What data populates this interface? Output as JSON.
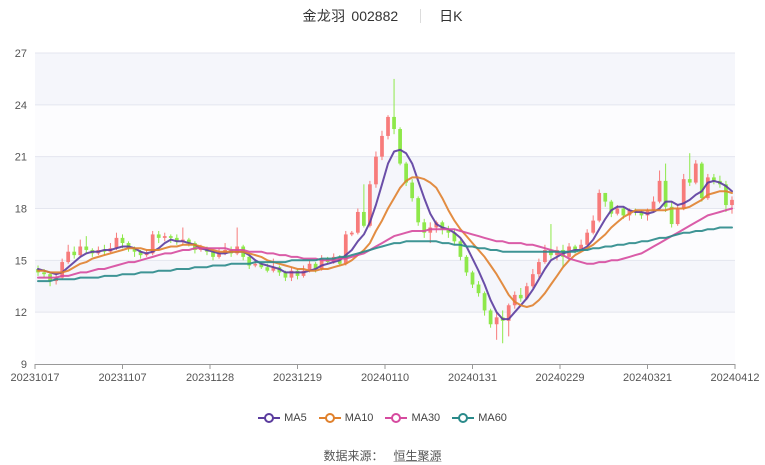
{
  "header": {
    "stock_name": "金龙羽",
    "stock_code": "002882",
    "period": "日K"
  },
  "legend": [
    {
      "label": "MA5",
      "color": "#5b3c9e"
    },
    {
      "label": "MA10",
      "color": "#e0812d"
    },
    {
      "label": "MA30",
      "color": "#d64a9f"
    },
    {
      "label": "MA60",
      "color": "#2a8a8a"
    }
  ],
  "source": {
    "label": "数据来源：",
    "value": "恒生聚源"
  },
  "colors": {
    "up": "#f77b7b",
    "down": "#8ee84a",
    "band_shaded": "#f5f6fb",
    "band_plain": "#fcfcfe",
    "grid": "#e4e6ef",
    "axis": "#999999"
  },
  "chart_data": {
    "type": "candlestick",
    "title": "金龙羽 002882 日K",
    "xlabel": "",
    "ylabel": "",
    "ylim": [
      9,
      27
    ],
    "yticks": [
      9,
      12,
      15,
      18,
      21,
      24,
      27
    ],
    "xticks": [
      "20231017",
      "20231107",
      "20231128",
      "20231219",
      "20240110",
      "20240131",
      "20240229",
      "20240321",
      "20240412"
    ],
    "grid": true,
    "legend_position": "bottom",
    "candles": [
      [
        14.5,
        14.3,
        14.7,
        14.1
      ],
      [
        14.3,
        14.2,
        14.5,
        14.0
      ],
      [
        14.2,
        13.8,
        14.3,
        13.5
      ],
      [
        13.8,
        14.0,
        14.2,
        13.6
      ],
      [
        14.0,
        14.9,
        15.1,
        13.9
      ],
      [
        14.9,
        15.5,
        15.9,
        14.8
      ],
      [
        15.5,
        15.3,
        15.8,
        15.1
      ],
      [
        15.3,
        15.8,
        16.2,
        15.2
      ],
      [
        15.8,
        15.6,
        16.4,
        15.4
      ],
      [
        15.6,
        15.4,
        15.7,
        15.2
      ],
      [
        15.4,
        15.6,
        15.8,
        15.3
      ],
      [
        15.6,
        15.5,
        15.9,
        15.3
      ],
      [
        15.5,
        15.7,
        16.0,
        15.4
      ],
      [
        15.7,
        16.3,
        16.6,
        15.6
      ],
      [
        16.3,
        16.0,
        16.5,
        15.7
      ],
      [
        16.0,
        15.7,
        16.1,
        15.5
      ],
      [
        15.7,
        15.5,
        15.8,
        15.2
      ],
      [
        15.5,
        15.3,
        15.6,
        15.1
      ],
      [
        15.3,
        15.4,
        15.6,
        15.2
      ],
      [
        15.4,
        16.5,
        16.7,
        15.3
      ],
      [
        16.5,
        16.3,
        16.7,
        16.0
      ],
      [
        16.3,
        16.4,
        16.6,
        16.1
      ],
      [
        16.4,
        16.3,
        16.5,
        16.0
      ],
      [
        16.3,
        16.1,
        16.5,
        15.9
      ],
      [
        16.1,
        16.2,
        16.9,
        15.9
      ],
      [
        16.2,
        16.0,
        16.3,
        15.8
      ],
      [
        16.0,
        15.6,
        16.1,
        15.4
      ],
      [
        15.6,
        15.7,
        15.9,
        15.5
      ],
      [
        15.7,
        15.5,
        15.8,
        15.3
      ],
      [
        15.5,
        15.2,
        15.6,
        15.0
      ],
      [
        15.2,
        15.4,
        15.7,
        15.1
      ],
      [
        15.4,
        15.6,
        16.0,
        15.3
      ],
      [
        15.6,
        15.4,
        15.8,
        15.2
      ],
      [
        15.4,
        15.8,
        16.9,
        15.3
      ],
      [
        15.8,
        15.2,
        15.9,
        15.0
      ],
      [
        15.2,
        14.7,
        15.3,
        14.5
      ],
      [
        14.7,
        14.8,
        15.0,
        14.6
      ],
      [
        14.8,
        14.6,
        14.9,
        14.5
      ],
      [
        14.6,
        14.4,
        14.8,
        14.3
      ],
      [
        14.4,
        14.6,
        15.1,
        14.3
      ],
      [
        14.6,
        14.3,
        14.7,
        14.1
      ],
      [
        14.3,
        14.0,
        14.4,
        13.8
      ],
      [
        14.0,
        14.4,
        14.6,
        13.8
      ],
      [
        14.4,
        14.1,
        14.5,
        13.9
      ],
      [
        14.1,
        14.4,
        14.7,
        14.0
      ],
      [
        14.4,
        14.8,
        15.0,
        14.3
      ],
      [
        14.8,
        14.5,
        14.9,
        14.3
      ],
      [
        14.5,
        15.1,
        15.3,
        14.4
      ],
      [
        15.1,
        14.9,
        15.2,
        14.8
      ],
      [
        14.9,
        15.2,
        15.4,
        14.8
      ],
      [
        15.2,
        14.8,
        15.3,
        14.7
      ],
      [
        14.8,
        16.5,
        16.7,
        14.7
      ],
      [
        16.5,
        16.6,
        16.7,
        16.4
      ],
      [
        16.6,
        17.8,
        18.0,
        16.5
      ],
      [
        17.8,
        17.0,
        19.4,
        16.9
      ],
      [
        17.0,
        19.4,
        19.6,
        16.9
      ],
      [
        19.4,
        21.0,
        21.3,
        19.2
      ],
      [
        21.0,
        22.2,
        22.5,
        20.8
      ],
      [
        22.2,
        23.3,
        23.4,
        22.0
      ],
      [
        23.3,
        22.6,
        25.5,
        22.3
      ],
      [
        22.6,
        20.6,
        22.7,
        20.5
      ],
      [
        20.6,
        19.5,
        20.7,
        19.3
      ],
      [
        19.5,
        18.6,
        19.7,
        18.4
      ],
      [
        18.6,
        17.2,
        18.7,
        17.0
      ],
      [
        17.2,
        16.6,
        17.4,
        16.3
      ],
      [
        16.6,
        16.9,
        17.2,
        16.0
      ],
      [
        16.9,
        17.2,
        17.3,
        16.6
      ],
      [
        17.2,
        16.8,
        17.3,
        16.5
      ],
      [
        16.8,
        16.6,
        17.0,
        16.3
      ],
      [
        16.6,
        16.1,
        16.8,
        15.9
      ],
      [
        16.1,
        15.2,
        16.2,
        15.0
      ],
      [
        15.2,
        14.3,
        15.3,
        14.1
      ],
      [
        14.3,
        13.6,
        14.4,
        13.4
      ],
      [
        13.6,
        13.1,
        13.8,
        12.9
      ],
      [
        13.1,
        12.1,
        13.2,
        11.8
      ],
      [
        12.1,
        11.3,
        12.2,
        11.1
      ],
      [
        11.3,
        11.7,
        12.0,
        10.4
      ],
      [
        11.7,
        11.5,
        12.1,
        10.2
      ],
      [
        11.5,
        12.4,
        12.5,
        10.6
      ],
      [
        12.4,
        13.0,
        13.2,
        12.2
      ],
      [
        13.0,
        12.8,
        13.4,
        12.6
      ],
      [
        12.8,
        13.5,
        13.7,
        12.7
      ],
      [
        13.5,
        14.2,
        14.5,
        13.4
      ],
      [
        14.2,
        14.9,
        15.1,
        14.0
      ],
      [
        14.9,
        15.6,
        15.9,
        14.8
      ],
      [
        15.6,
        15.3,
        17.1,
        15.1
      ],
      [
        15.3,
        15.6,
        15.8,
        15.0
      ],
      [
        15.6,
        15.2,
        15.9,
        14.6
      ],
      [
        15.2,
        15.8,
        16.0,
        15.0
      ],
      [
        15.8,
        15.6,
        15.9,
        15.4
      ],
      [
        15.6,
        15.9,
        16.2,
        15.5
      ],
      [
        15.9,
        16.6,
        16.8,
        15.8
      ],
      [
        16.6,
        17.3,
        17.6,
        16.5
      ],
      [
        17.3,
        18.9,
        19.1,
        17.2
      ],
      [
        18.9,
        18.4,
        18.9,
        18.1
      ],
      [
        18.4,
        17.7,
        18.5,
        17.5
      ],
      [
        17.7,
        18.0,
        18.2,
        17.6
      ],
      [
        18.0,
        17.6,
        18.1,
        17.4
      ],
      [
        17.6,
        17.9,
        18.0,
        17.3
      ],
      [
        17.9,
        17.8,
        18.0,
        17.6
      ],
      [
        17.8,
        17.6,
        17.9,
        17.4
      ],
      [
        17.6,
        17.9,
        18.0,
        17.3
      ],
      [
        17.9,
        18.4,
        18.7,
        17.8
      ],
      [
        18.4,
        19.6,
        20.2,
        18.3
      ],
      [
        19.6,
        18.1,
        20.6,
        17.8
      ],
      [
        18.1,
        17.1,
        18.4,
        16.9
      ],
      [
        17.1,
        18.0,
        18.2,
        17.0
      ],
      [
        18.0,
        19.7,
        20.0,
        17.9
      ],
      [
        19.7,
        19.5,
        21.2,
        19.3
      ],
      [
        19.5,
        20.6,
        20.8,
        19.4
      ],
      [
        20.6,
        18.6,
        20.7,
        18.4
      ],
      [
        18.6,
        19.8,
        20.0,
        18.5
      ],
      [
        19.8,
        19.6,
        20.0,
        19.4
      ],
      [
        19.6,
        19.4,
        19.9,
        19.2
      ],
      [
        19.4,
        18.2,
        19.6,
        17.8
      ],
      [
        18.2,
        18.5,
        18.7,
        17.7
      ]
    ],
    "series": [
      {
        "name": "MA5",
        "values": [
          14.5,
          14.4,
          14.3,
          14.2,
          14.3,
          14.6,
          14.9,
          15.2,
          15.4,
          15.5,
          15.5,
          15.6,
          15.6,
          15.7,
          15.8,
          15.8,
          15.7,
          15.5,
          15.4,
          15.5,
          15.7,
          16.0,
          16.2,
          16.1,
          16.1,
          16.0,
          15.9,
          15.7,
          15.6,
          15.5,
          15.4,
          15.4,
          15.5,
          15.5,
          15.5,
          15.3,
          15.0,
          14.8,
          14.7,
          14.6,
          14.5,
          14.3,
          14.3,
          14.3,
          14.3,
          14.4,
          14.5,
          14.7,
          14.8,
          14.9,
          15.0,
          15.3,
          15.6,
          16.1,
          16.5,
          17.2,
          18.2,
          19.4,
          20.6,
          21.3,
          21.4,
          21.2,
          20.6,
          19.6,
          18.6,
          17.7,
          17.1,
          16.9,
          16.8,
          16.6,
          16.3,
          15.8,
          15.1,
          14.4,
          13.6,
          12.7,
          12.0,
          11.6,
          11.6,
          12.0,
          12.4,
          12.8,
          13.3,
          13.9,
          14.5,
          15.0,
          15.2,
          15.4,
          15.5,
          15.6,
          15.6,
          15.8,
          16.2,
          16.8,
          17.4,
          17.9,
          18.1,
          18.1,
          17.9,
          17.8,
          17.8,
          17.7,
          17.8,
          18.0,
          18.4,
          18.4,
          18.2,
          18.3,
          18.5,
          18.8,
          19.0,
          19.5,
          19.6,
          19.5,
          19.3,
          19.0
        ]
      },
      {
        "name": "MA10",
        "values": [
          14.4,
          14.4,
          14.3,
          14.3,
          14.3,
          14.4,
          14.6,
          14.8,
          14.9,
          15.1,
          15.2,
          15.3,
          15.4,
          15.5,
          15.6,
          15.7,
          15.7,
          15.7,
          15.6,
          15.6,
          15.6,
          15.7,
          15.8,
          15.8,
          15.9,
          15.9,
          15.9,
          15.8,
          15.7,
          15.6,
          15.5,
          15.5,
          15.5,
          15.5,
          15.5,
          15.4,
          15.3,
          15.2,
          15.0,
          14.9,
          14.8,
          14.7,
          14.6,
          14.5,
          14.5,
          14.4,
          14.4,
          14.5,
          14.5,
          14.6,
          14.7,
          14.8,
          15.0,
          15.3,
          15.6,
          16.0,
          16.7,
          17.3,
          18.0,
          18.6,
          19.2,
          19.6,
          19.8,
          19.8,
          19.7,
          19.5,
          19.2,
          18.6,
          17.9,
          17.3,
          16.8,
          16.4,
          16.0,
          15.6,
          15.2,
          14.7,
          14.2,
          13.6,
          13.0,
          12.6,
          12.4,
          12.3,
          12.4,
          12.7,
          13.1,
          13.6,
          14.1,
          14.6,
          15.0,
          15.3,
          15.5,
          15.7,
          15.9,
          16.2,
          16.5,
          16.9,
          17.2,
          17.5,
          17.7,
          17.9,
          17.9,
          17.9,
          17.9,
          17.9,
          17.9,
          18.0,
          18.0,
          18.0,
          18.1,
          18.3,
          18.5,
          18.8,
          18.9,
          19.0,
          19.0,
          18.9
        ]
      },
      {
        "name": "MA30",
        "values": [
          14.0,
          14.0,
          14.0,
          14.0,
          14.1,
          14.1,
          14.2,
          14.3,
          14.3,
          14.4,
          14.5,
          14.5,
          14.6,
          14.7,
          14.8,
          14.9,
          14.9,
          15.0,
          15.1,
          15.2,
          15.3,
          15.4,
          15.4,
          15.5,
          15.6,
          15.6,
          15.7,
          15.7,
          15.7,
          15.7,
          15.7,
          15.7,
          15.6,
          15.6,
          15.6,
          15.5,
          15.5,
          15.5,
          15.4,
          15.4,
          15.3,
          15.3,
          15.2,
          15.2,
          15.1,
          15.1,
          15.1,
          15.0,
          15.0,
          15.0,
          15.1,
          15.1,
          15.2,
          15.3,
          15.4,
          15.6,
          15.8,
          16.0,
          16.2,
          16.4,
          16.5,
          16.6,
          16.7,
          16.7,
          16.7,
          16.8,
          16.8,
          16.8,
          16.8,
          16.8,
          16.7,
          16.6,
          16.5,
          16.4,
          16.3,
          16.2,
          16.1,
          16.1,
          16.0,
          16.0,
          16.0,
          15.9,
          15.9,
          15.8,
          15.7,
          15.6,
          15.5,
          15.3,
          15.1,
          15.0,
          14.9,
          14.8,
          14.8,
          14.9,
          14.9,
          15.0,
          15.0,
          15.1,
          15.2,
          15.3,
          15.4,
          15.6,
          15.8,
          16.0,
          16.2,
          16.4,
          16.6,
          16.8,
          17.0,
          17.2,
          17.4,
          17.6,
          17.7,
          17.8,
          17.9,
          18.0
        ]
      },
      {
        "name": "MA60",
        "values": [
          13.8,
          13.8,
          13.8,
          13.9,
          13.9,
          13.9,
          13.9,
          14.0,
          14.0,
          14.0,
          14.0,
          14.1,
          14.1,
          14.1,
          14.2,
          14.2,
          14.2,
          14.3,
          14.3,
          14.3,
          14.4,
          14.4,
          14.4,
          14.5,
          14.5,
          14.5,
          14.6,
          14.6,
          14.6,
          14.7,
          14.7,
          14.7,
          14.8,
          14.8,
          14.8,
          14.8,
          14.9,
          14.9,
          14.9,
          14.9,
          14.9,
          14.9,
          15.0,
          15.0,
          15.0,
          15.0,
          15.0,
          15.1,
          15.1,
          15.1,
          15.2,
          15.2,
          15.3,
          15.4,
          15.5,
          15.6,
          15.7,
          15.8,
          15.9,
          16.0,
          16.0,
          16.1,
          16.1,
          16.1,
          16.1,
          16.1,
          16.1,
          16.0,
          16.0,
          15.9,
          15.9,
          15.8,
          15.8,
          15.7,
          15.7,
          15.6,
          15.6,
          15.5,
          15.5,
          15.5,
          15.5,
          15.5,
          15.5,
          15.5,
          15.5,
          15.5,
          15.5,
          15.5,
          15.5,
          15.5,
          15.6,
          15.6,
          15.7,
          15.7,
          15.8,
          15.8,
          15.9,
          15.9,
          16.0,
          16.0,
          16.1,
          16.1,
          16.2,
          16.3,
          16.3,
          16.4,
          16.5,
          16.6,
          16.6,
          16.7,
          16.7,
          16.8,
          16.8,
          16.9,
          16.9,
          16.9
        ]
      }
    ]
  }
}
